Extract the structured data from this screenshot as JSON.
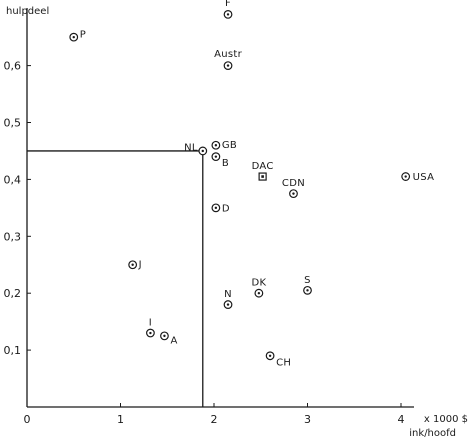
{
  "chart_data": {
    "type": "scatter",
    "title": "",
    "ylabel": "hulpdeel",
    "xlabel": "ink/hoofd",
    "x_unit": "x 1000 $",
    "xlim": [
      0,
      4.5
    ],
    "ylim": [
      0,
      0.7
    ],
    "x_ticks": [
      "0",
      "1",
      "2",
      "3",
      "4"
    ],
    "y_ticks": [
      "0,1",
      "0,2",
      "0,3",
      "0,4",
      "0,5",
      "0,6"
    ],
    "grid": false,
    "reference_point": {
      "label": "NL",
      "x": 1.88,
      "y": 0.45
    },
    "points": [
      {
        "label": "F",
        "x": 2.15,
        "y": 0.69,
        "marker": "circle"
      },
      {
        "label": "P",
        "x": 0.5,
        "y": 0.65,
        "marker": "circle"
      },
      {
        "label": "Austr",
        "x": 2.15,
        "y": 0.6,
        "marker": "circle"
      },
      {
        "label": "NL",
        "x": 1.88,
        "y": 0.45,
        "marker": "circle"
      },
      {
        "label": "GB",
        "x": 2.02,
        "y": 0.46,
        "marker": "circle"
      },
      {
        "label": "B",
        "x": 2.02,
        "y": 0.44,
        "marker": "circle"
      },
      {
        "label": "DAC",
        "x": 2.52,
        "y": 0.405,
        "marker": "square"
      },
      {
        "label": "CDN",
        "x": 2.85,
        "y": 0.375,
        "marker": "circle"
      },
      {
        "label": "USA",
        "x": 4.05,
        "y": 0.405,
        "marker": "circle"
      },
      {
        "label": "D",
        "x": 2.02,
        "y": 0.35,
        "marker": "circle"
      },
      {
        "label": "J",
        "x": 1.13,
        "y": 0.25,
        "marker": "circle"
      },
      {
        "label": "DK",
        "x": 2.48,
        "y": 0.2,
        "marker": "circle"
      },
      {
        "label": "S",
        "x": 3.0,
        "y": 0.205,
        "marker": "circle"
      },
      {
        "label": "N",
        "x": 2.15,
        "y": 0.18,
        "marker": "circle"
      },
      {
        "label": "I",
        "x": 1.32,
        "y": 0.13,
        "marker": "circle"
      },
      {
        "label": "A",
        "x": 1.47,
        "y": 0.125,
        "marker": "circle"
      },
      {
        "label": "CH",
        "x": 2.6,
        "y": 0.09,
        "marker": "circle"
      }
    ]
  }
}
